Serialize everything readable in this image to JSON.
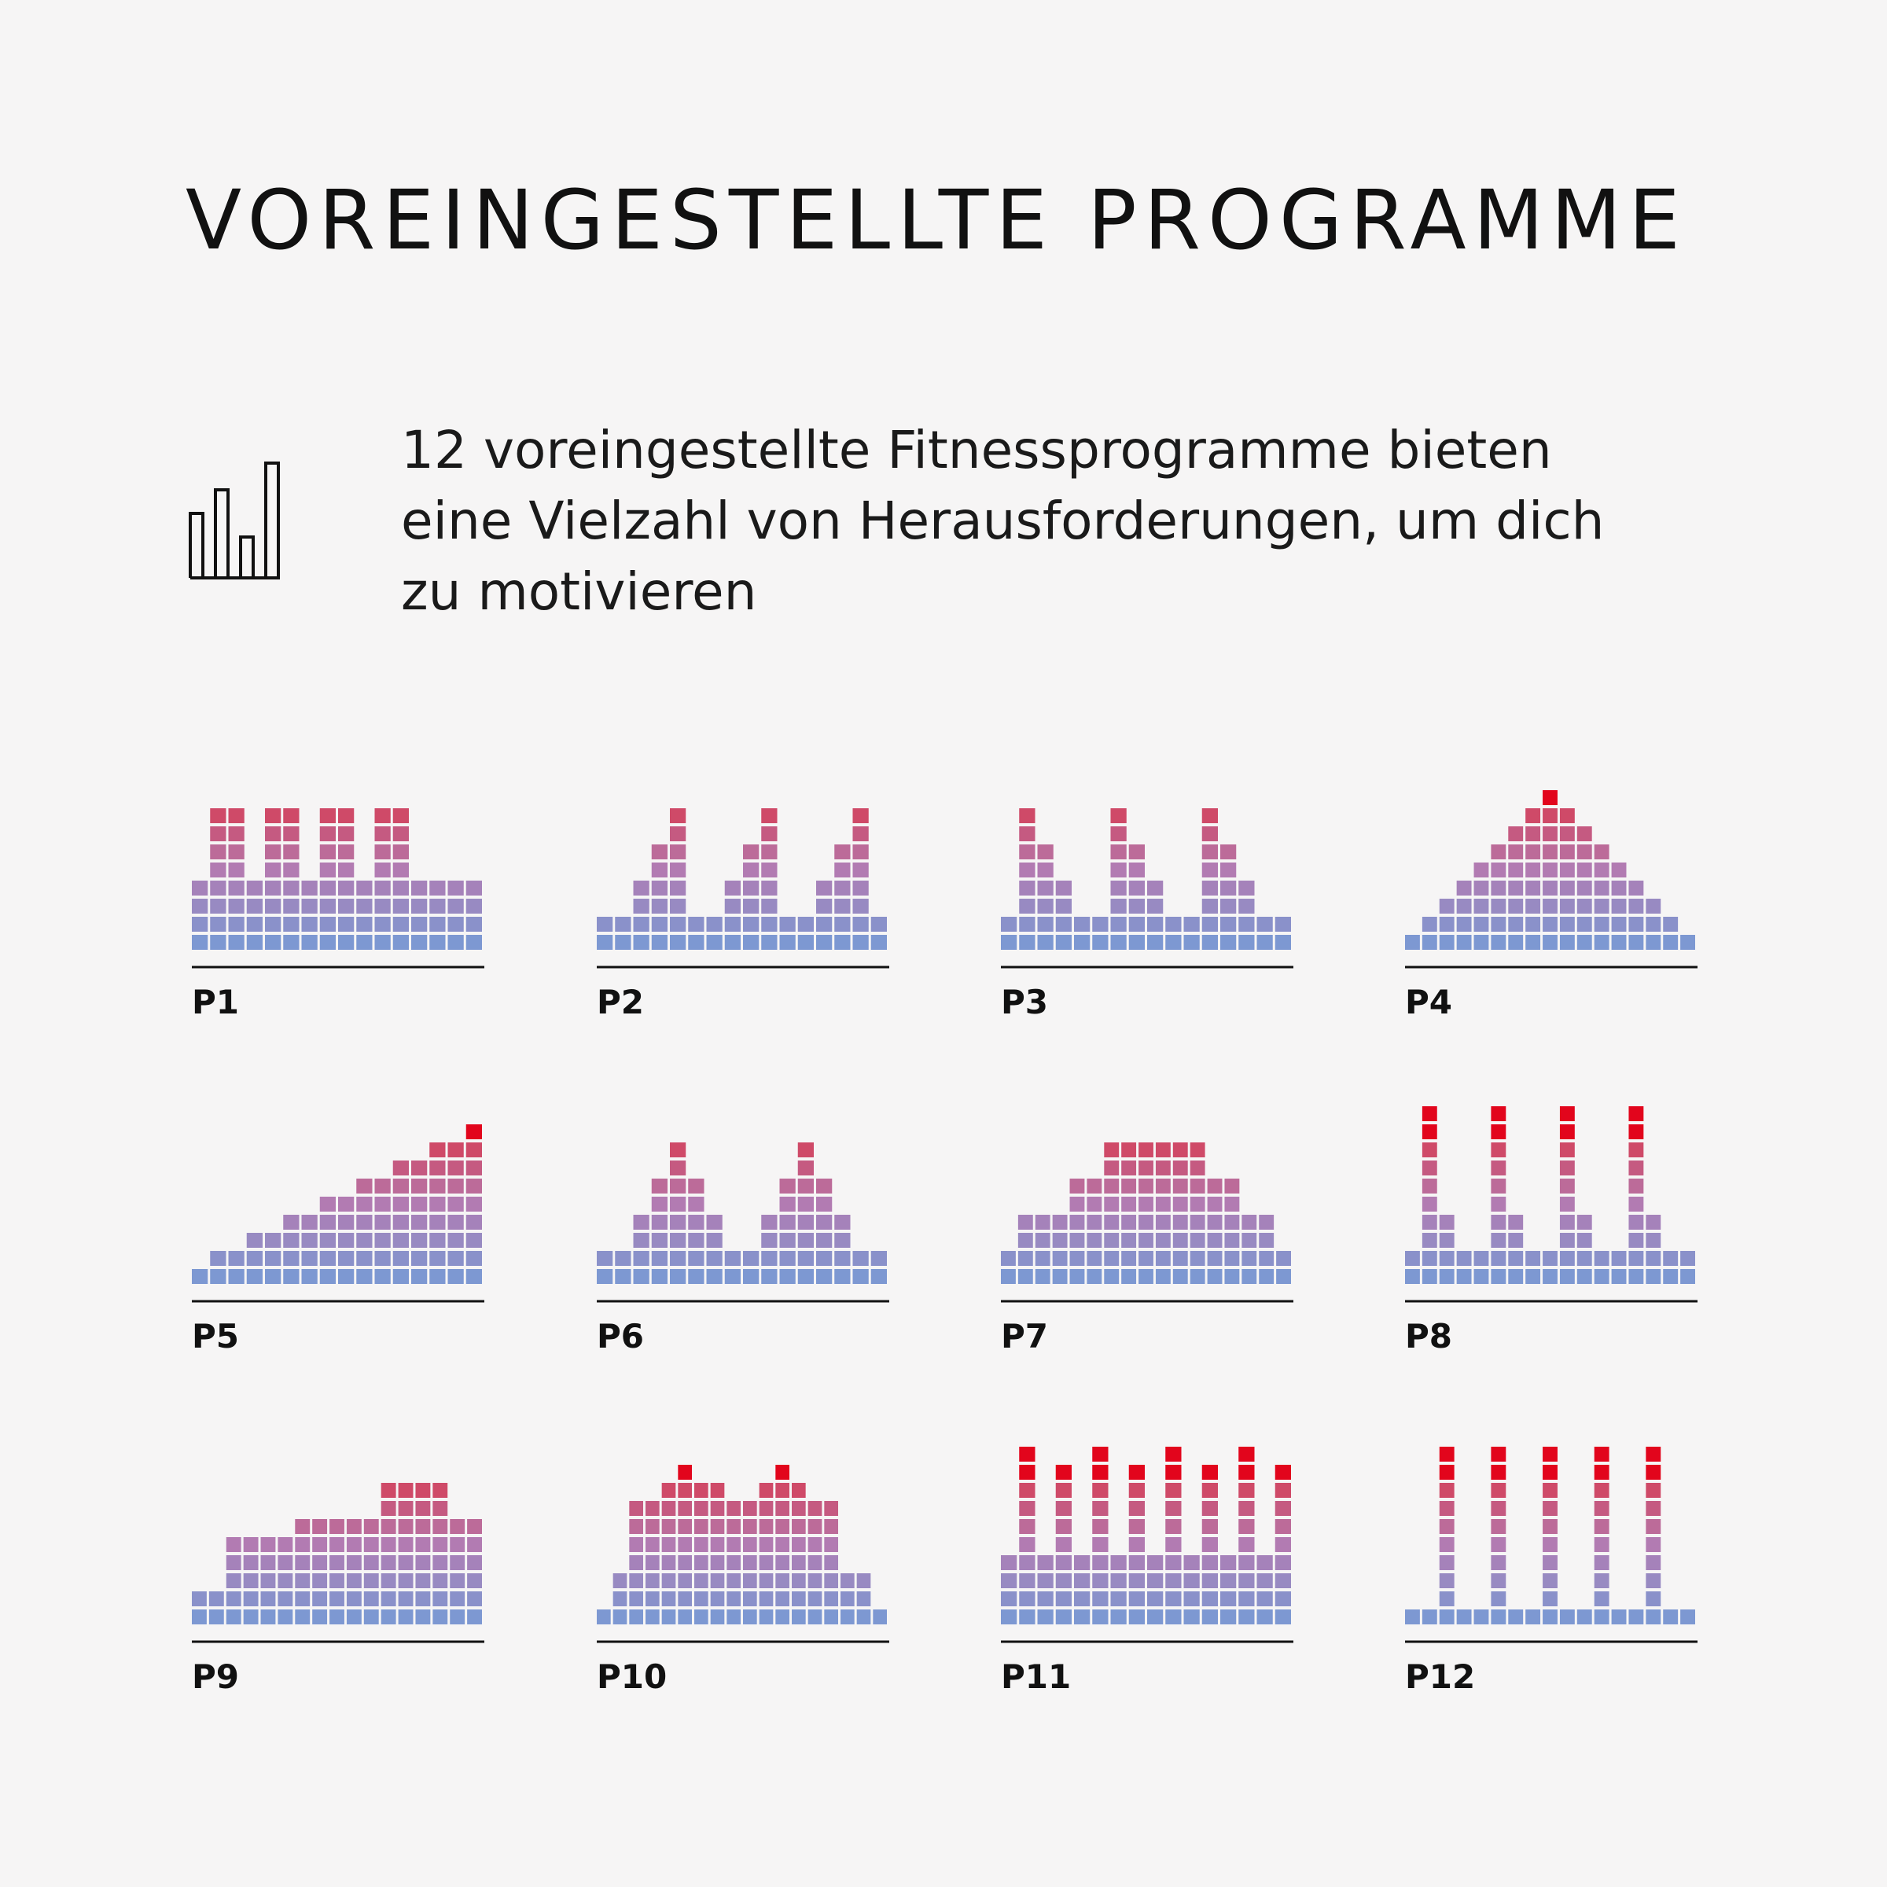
{
  "header": {
    "title": "VOREINGESTELLTE PROGRAMME"
  },
  "intro": {
    "icon": "bar-chart-outline-icon",
    "lines": [
      "12 voreingestellte Fitnessprogramme bieten",
      "eine Vielzahl von Herausforderungen, um dich",
      "zu motivieren"
    ]
  },
  "colors": {
    "background": "#f6f5f5",
    "low": "#7d98d2",
    "mid": "#b27bb2",
    "high": "#cf4a68",
    "peak": "#e2051c",
    "axis": "#111111"
  },
  "chart_data": [
    {
      "type": "bar",
      "name": "P1",
      "values": [
        4,
        8,
        8,
        4,
        8,
        8,
        4,
        8,
        8,
        4,
        8,
        8,
        4,
        4,
        4,
        4
      ],
      "ylim": [
        0,
        9
      ]
    },
    {
      "type": "bar",
      "name": "P2",
      "values": [
        2,
        2,
        4,
        6,
        8,
        2,
        2,
        4,
        6,
        8,
        2,
        2,
        4,
        6,
        8,
        2
      ],
      "ylim": [
        0,
        9
      ]
    },
    {
      "type": "bar",
      "name": "P3",
      "values": [
        2,
        8,
        6,
        4,
        2,
        2,
        8,
        6,
        4,
        2,
        2,
        8,
        6,
        4,
        2,
        2
      ],
      "ylim": [
        0,
        9
      ]
    },
    {
      "type": "bar",
      "name": "P4",
      "values": [
        1,
        2,
        3,
        4,
        5,
        6,
        7,
        8,
        9,
        8,
        7,
        6,
        5,
        4,
        3,
        2,
        1
      ],
      "ylim": [
        0,
        9
      ]
    },
    {
      "type": "bar",
      "name": "P5",
      "values": [
        1,
        2,
        2,
        3,
        3,
        4,
        4,
        5,
        5,
        6,
        6,
        7,
        7,
        8,
        8,
        9
      ],
      "ylim": [
        0,
        9
      ]
    },
    {
      "type": "bar",
      "name": "P6",
      "values": [
        2,
        2,
        4,
        6,
        8,
        6,
        4,
        2,
        2,
        4,
        6,
        8,
        6,
        4,
        2,
        2
      ],
      "ylim": [
        0,
        9
      ]
    },
    {
      "type": "bar",
      "name": "P7",
      "values": [
        2,
        4,
        4,
        4,
        6,
        6,
        8,
        8,
        8,
        8,
        8,
        8,
        6,
        6,
        4,
        4,
        2
      ],
      "ylim": [
        0,
        9
      ]
    },
    {
      "type": "bar",
      "name": "P8",
      "values": [
        2,
        10,
        4,
        2,
        2,
        10,
        4,
        2,
        2,
        10,
        4,
        2,
        2,
        10,
        4,
        2,
        2
      ],
      "ylim": [
        0,
        11
      ]
    },
    {
      "type": "bar",
      "name": "P9",
      "values": [
        2,
        2,
        5,
        5,
        5,
        5,
        6,
        6,
        6,
        6,
        6,
        8,
        8,
        8,
        8,
        6,
        6
      ],
      "ylim": [
        0,
        9
      ]
    },
    {
      "type": "bar",
      "name": "P10",
      "values": [
        1,
        3,
        7,
        7,
        8,
        9,
        8,
        8,
        7,
        7,
        8,
        9,
        8,
        7,
        7,
        3,
        3,
        1
      ],
      "ylim": [
        0,
        10
      ]
    },
    {
      "type": "bar",
      "name": "P11",
      "values": [
        4,
        10,
        4,
        9,
        4,
        10,
        4,
        9,
        4,
        10,
        4,
        9,
        4,
        10,
        4,
        9
      ],
      "ylim": [
        0,
        11
      ]
    },
    {
      "type": "bar",
      "name": "P12",
      "values": [
        1,
        1,
        10,
        1,
        1,
        10,
        1,
        1,
        10,
        1,
        1,
        10,
        1,
        1,
        10,
        1,
        1
      ],
      "ylim": [
        0,
        11
      ]
    }
  ]
}
